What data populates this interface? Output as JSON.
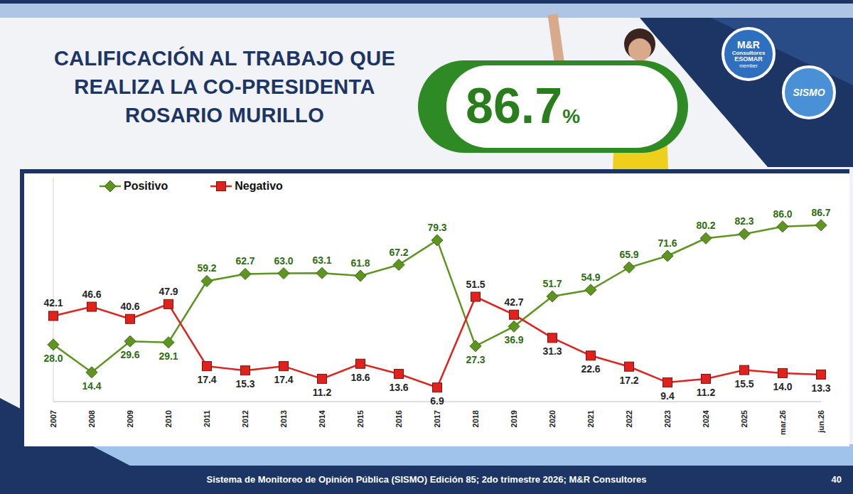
{
  "chart_data": {
    "type": "line",
    "title": "CALIFICACIÓN AL TRABAJO QUE REALIZA LA CO-PRESIDENTA ROSARIO MURILLO",
    "headline": {
      "value": 86.7,
      "unit": "%"
    },
    "categories": [
      "2007",
      "2008",
      "2009",
      "2010",
      "2011",
      "2012",
      "2013",
      "2014",
      "2015",
      "2016",
      "2017",
      "2018",
      "2019",
      "2020",
      "2021",
      "2022",
      "2023",
      "2024",
      "2025",
      "mar.26",
      "jun.26"
    ],
    "series": [
      {
        "name": "Positivo",
        "color": "#5e9420",
        "marker": "diamond",
        "values": [
          28.0,
          14.4,
          29.6,
          29.1,
          59.2,
          62.7,
          63.0,
          63.1,
          61.8,
          67.2,
          79.3,
          27.3,
          36.9,
          51.7,
          54.9,
          65.9,
          71.6,
          80.2,
          82.3,
          86.0,
          86.7
        ],
        "value_labels": [
          "28.0",
          "14.4",
          "29.6",
          "29.1",
          "59.2",
          "62.7",
          "63.0",
          "63.1",
          "61.8",
          "67.2",
          "79.3",
          "27.3",
          "36.9",
          "51.7",
          "54.9",
          "65.9",
          "71.6",
          "80.2",
          "82.3",
          "86.0",
          "86.7"
        ]
      },
      {
        "name": "Negativo",
        "color": "#e0211c",
        "marker": "square",
        "values": [
          42.1,
          46.6,
          40.6,
          47.9,
          17.4,
          15.3,
          17.4,
          11.2,
          18.6,
          13.6,
          6.9,
          51.5,
          42.7,
          31.3,
          22.6,
          17.2,
          9.4,
          11.2,
          15.5,
          14.0,
          13.3
        ],
        "value_labels": [
          "42.1",
          "46.6",
          "40.6",
          "47.9",
          "17.4",
          "15.3",
          "17.4",
          "11.2",
          "18.6",
          "13.6",
          "6.9",
          "51.5",
          "42.7",
          "31.3",
          "22.6",
          "17.2",
          "9.4",
          "11.2",
          "15.5",
          "14.0",
          "13.3"
        ]
      }
    ],
    "ylim": [
      0,
      110
    ],
    "yticks": [],
    "grid": false,
    "legend": "top-left",
    "data_labels": true,
    "tick_labels": "x",
    "footer": "Sistema de Monitoreo de Opinión Pública (SISMO) Edición 85; 2do trimestre 2026; M&R Consultores",
    "page": "40",
    "logos": {
      "mr": [
        "M&R",
        "Consultores",
        "ESOMAR",
        "member"
      ],
      "sismo": "SISMO"
    }
  }
}
